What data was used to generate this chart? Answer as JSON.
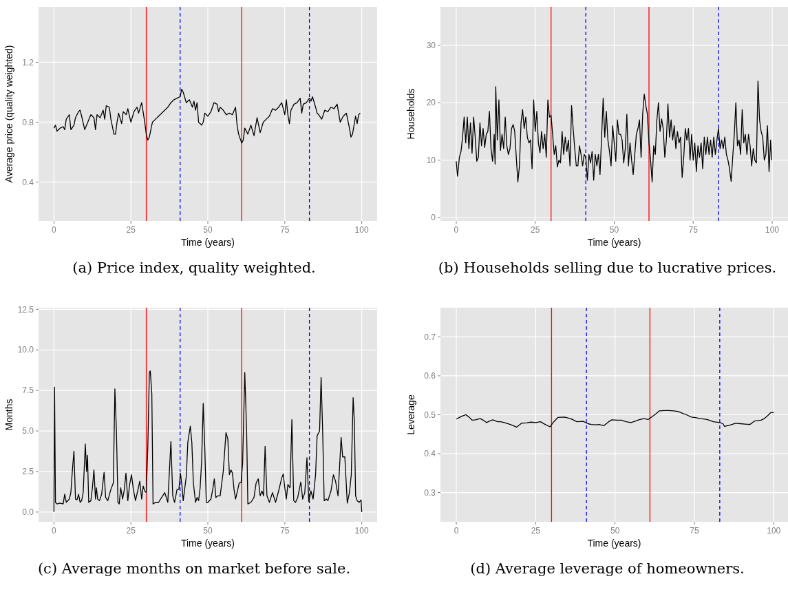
{
  "chart_data": [
    {
      "type": "line",
      "title": "(a) Price index, quality weighted.",
      "xlabel": "Time (years)",
      "ylabel": "Average price (quality weighted)",
      "xlim": [
        -5,
        105
      ],
      "ylim": [
        0.14,
        1.57
      ],
      "xticks": [
        0,
        25,
        50,
        75,
        100
      ],
      "yticks": [
        {
          "value": 0.4,
          "label": "0.4"
        },
        {
          "value": 0.8,
          "label": "0.8"
        },
        {
          "value": 1.2,
          "label": "1.2"
        }
      ],
      "grid": true,
      "x": [
        0,
        0.5,
        1,
        2,
        3,
        3.5,
        4,
        5,
        5.5,
        6.5,
        7,
        8,
        8.5,
        9,
        10,
        11,
        12,
        13,
        13.5,
        14,
        15,
        16,
        16.5,
        17,
        18,
        18.5,
        19.5,
        20,
        20.5,
        21,
        22,
        22.5,
        23.5,
        24,
        25,
        26,
        27,
        27.5,
        28.5,
        29.5,
        30,
        30.5,
        31,
        32,
        33,
        34,
        35,
        36,
        37,
        38,
        39,
        40,
        41,
        41.5,
        42,
        43,
        44,
        45,
        45.5,
        46,
        46.5,
        47,
        48,
        48.5,
        49,
        50,
        51,
        52,
        53,
        53.5,
        54,
        55,
        56,
        57,
        58,
        59,
        59.5,
        60,
        61,
        61.5,
        62,
        63,
        64,
        65,
        66,
        66.5,
        67,
        68,
        69,
        70,
        71,
        72,
        73,
        74,
        75,
        75.5,
        76,
        76.5,
        77,
        78,
        79,
        80,
        80.5,
        81,
        82,
        83,
        83.5,
        84,
        85,
        85.5,
        86,
        87,
        88,
        89,
        90,
        91,
        92,
        92.5,
        93,
        94,
        95,
        96,
        96.5,
        97,
        98,
        98.5,
        99,
        99.5
      ],
      "series": [
        {
          "color": "#000000",
          "values": [
            0.76,
            0.78,
            0.74,
            0.76,
            0.77,
            0.75,
            0.82,
            0.85,
            0.75,
            0.78,
            0.83,
            0.87,
            0.88,
            0.84,
            0.75,
            0.8,
            0.85,
            0.83,
            0.75,
            0.85,
            0.83,
            0.88,
            0.82,
            0.91,
            0.9,
            0.82,
            0.72,
            0.72,
            0.8,
            0.86,
            0.79,
            0.87,
            0.85,
            0.89,
            0.8,
            0.87,
            0.9,
            0.86,
            0.93,
            0.8,
            0.72,
            0.68,
            0.7,
            0.8,
            0.82,
            0.84,
            0.86,
            0.88,
            0.9,
            0.93,
            0.95,
            0.96,
            0.97,
            1.02,
            1.0,
            0.93,
            0.95,
            0.9,
            0.94,
            0.88,
            0.93,
            0.8,
            0.78,
            0.8,
            0.86,
            0.84,
            0.87,
            0.93,
            0.92,
            0.87,
            0.9,
            0.88,
            0.85,
            0.86,
            0.85,
            0.9,
            0.78,
            0.72,
            0.66,
            0.68,
            0.76,
            0.72,
            0.78,
            0.71,
            0.83,
            0.78,
            0.73,
            0.8,
            0.82,
            0.84,
            0.89,
            0.88,
            0.9,
            0.93,
            0.85,
            0.95,
            0.85,
            0.79,
            0.88,
            0.92,
            0.93,
            0.96,
            0.86,
            0.92,
            0.93,
            0.96,
            0.94,
            0.97,
            0.9,
            0.86,
            0.85,
            0.82,
            0.88,
            0.87,
            0.9,
            0.89,
            0.92,
            0.86,
            0.8,
            0.84,
            0.86,
            0.76,
            0.7,
            0.72,
            0.84,
            0.79,
            0.85,
            0.86
          ]
        }
      ],
      "ref_lines": [
        {
          "axis": "x",
          "value": 30,
          "color": "#ff0000",
          "line_style": "solid"
        },
        {
          "axis": "x",
          "value": 41,
          "color": "#0000ff",
          "line_style": "dashed"
        },
        {
          "axis": "x",
          "value": 61,
          "color": "#ff0000",
          "line_style": "solid"
        },
        {
          "axis": "x",
          "value": 83,
          "color": "#0000ff",
          "line_style": "dashed"
        }
      ]
    },
    {
      "type": "line",
      "title": "(b) Households selling due to lucrative prices.",
      "xlabel": "Time (years)",
      "ylabel": "Households",
      "xlim": [
        -5,
        105
      ],
      "ylim": [
        -0.6,
        36.7
      ],
      "xticks": [
        0,
        25,
        50,
        75,
        100
      ],
      "yticks": [
        0,
        10,
        20,
        30
      ],
      "grid": true,
      "x": [
        0,
        0.4,
        1,
        1.5,
        2,
        2.5,
        3,
        3.5,
        4,
        4.5,
        5,
        5.5,
        6,
        6.5,
        7,
        7.5,
        8,
        8.5,
        9,
        9.5,
        10,
        10.5,
        11,
        11.5,
        12,
        12.3,
        12.5,
        13,
        13.5,
        14,
        14.5,
        15,
        15.5,
        16,
        16.5,
        17,
        17.5,
        18,
        18.5,
        19,
        19.5,
        20,
        20.5,
        21,
        21.5,
        22,
        22.5,
        23,
        23.5,
        24,
        24.5,
        25,
        25.5,
        26,
        26.5,
        27,
        27.5,
        28,
        28.5,
        29,
        29.5,
        30,
        30.5,
        31,
        31.5,
        32,
        32.5,
        33,
        33.5,
        34,
        34.5,
        35,
        35.5,
        36,
        36.5,
        37,
        37.5,
        38,
        38.5,
        39,
        39.5,
        40,
        40.5,
        41,
        41.5,
        42,
        42.5,
        43,
        43.5,
        44,
        44.5,
        45,
        45.5,
        46,
        46.5,
        47,
        47.5,
        48,
        48.5,
        49,
        49.5,
        50,
        50.5,
        51,
        51.5,
        52,
        52.5,
        53,
        53.5,
        54,
        54.5,
        55,
        55.5,
        56,
        56.5,
        57,
        57.5,
        58,
        58.5,
        59,
        59.5,
        60,
        60.5,
        61,
        61.5,
        62,
        62.5,
        63,
        63.5,
        64,
        64.5,
        65,
        65.5,
        66,
        66.5,
        67,
        67.5,
        68,
        68.5,
        69,
        69.5,
        70,
        70.5,
        71,
        71.5,
        72,
        72.5,
        73,
        73.5,
        74,
        74.5,
        75,
        75.5,
        76,
        76.5,
        77,
        77.5,
        78,
        78.5,
        79,
        79.5,
        80,
        80.5,
        81,
        81.5,
        82,
        82.5,
        83,
        83.5,
        84,
        84.5,
        85,
        85.5,
        86,
        86.5,
        87,
        87.5,
        88,
        88.5,
        89,
        89.5,
        90,
        90.5,
        91,
        91.5,
        92,
        92.5,
        93,
        93.5,
        94,
        94.5,
        95,
        95.5,
        96,
        96.5,
        97,
        97.5,
        98,
        98.5,
        99,
        99.5,
        99.8
      ],
      "series": [
        {
          "color": "#000000",
          "values": [
            9.8,
            7.2,
            10.5,
            11.5,
            14,
            17.5,
            13,
            17.5,
            12,
            16.5,
            11.2,
            17.5,
            14,
            9.8,
            10.5,
            16.5,
            12.5,
            15.5,
            12.2,
            14.5,
            15,
            18.5,
            12,
            9.8,
            14.5,
            9.3,
            22.8,
            13.5,
            20.5,
            11.7,
            14.5,
            12,
            17.5,
            12.5,
            11,
            12,
            15.5,
            16.2,
            15,
            10.5,
            6.2,
            9,
            16.5,
            18.8,
            15.5,
            17.5,
            14,
            13,
            13.5,
            8.5,
            20.5,
            15,
            18.5,
            13,
            11.3,
            15,
            12,
            14.5,
            10.5,
            20.5,
            17.5,
            17.8,
            14.5,
            11,
            12.5,
            8.8,
            10,
            9.5,
            15,
            11,
            14,
            11.5,
            13.5,
            9,
            19.5,
            15.5,
            12,
            9,
            9,
            12.5,
            11,
            9,
            11,
            10.5,
            6.5,
            11,
            9.5,
            11.5,
            6.5,
            11,
            9,
            11,
            7.5,
            14,
            20.8,
            14,
            18.5,
            13.5,
            11.5,
            9,
            16,
            13,
            9.8,
            17,
            14.5,
            14.5,
            13.5,
            9.5,
            12,
            18,
            9,
            13,
            10,
            7.5,
            11,
            14.5,
            15.5,
            17,
            10.5,
            18,
            21.5,
            19.5,
            18,
            13,
            10,
            6.2,
            12.5,
            11,
            17,
            20,
            15,
            17.2,
            15.5,
            10.5,
            13.5,
            19.8,
            14,
            17,
            13.5,
            16,
            12,
            15,
            13,
            14,
            7,
            10.5,
            15.5,
            13.5,
            15.5,
            10,
            14.5,
            10,
            13,
            8,
            12.5,
            10.5,
            13,
            8.5,
            14,
            11,
            14,
            11,
            13.5,
            10.5,
            14,
            11,
            13.5,
            15.5,
            12,
            13.5,
            12,
            14,
            11,
            10,
            8.5,
            6.3,
            10.5,
            14.5,
            20,
            12.5,
            13.5,
            11,
            18.8,
            13,
            14.5,
            11,
            14.5,
            12.5,
            9,
            12,
            10,
            9.5,
            23.8,
            17,
            15,
            14,
            10,
            11,
            16,
            8,
            13.5,
            10
          ]
        }
      ],
      "ref_lines": [
        {
          "axis": "x",
          "value": 30,
          "color": "#ff0000",
          "line_style": "solid"
        },
        {
          "axis": "x",
          "value": 41,
          "color": "#0000ff",
          "line_style": "dashed"
        },
        {
          "axis": "x",
          "value": 61,
          "color": "#ff0000",
          "line_style": "solid"
        },
        {
          "axis": "x",
          "value": 83,
          "color": "#0000ff",
          "line_style": "dashed"
        }
      ]
    },
    {
      "type": "line",
      "title": "(c) Average months on market before sale.",
      "xlabel": "Time (years)",
      "ylabel": "Months",
      "xlim": [
        -5,
        105
      ],
      "ylim": [
        -0.6,
        12.6
      ],
      "xticks": [
        0,
        25,
        50,
        75,
        100
      ],
      "yticks": [
        {
          "value": 0,
          "label": "0.0"
        },
        {
          "value": 2.5,
          "label": "2.5"
        },
        {
          "value": 5,
          "label": "5.0"
        },
        {
          "value": 7.5,
          "label": "7.5"
        },
        {
          "value": 10,
          "label": "10.0"
        },
        {
          "value": 12.5,
          "label": "12.5"
        }
      ],
      "grid": true,
      "x": [
        0,
        0.2,
        0.5,
        1,
        2,
        3,
        3.5,
        4,
        5,
        5.5,
        6,
        6.5,
        7,
        7.5,
        8,
        8.5,
        9,
        9.5,
        10.2,
        10.6,
        10.9,
        11.3,
        12,
        12.5,
        13,
        13.5,
        13.8,
        14.2,
        14.8,
        15.5,
        16.3,
        16.8,
        17.5,
        18.5,
        19.3,
        19.8,
        20.3,
        20.8,
        21.2,
        21.7,
        22.3,
        22.8,
        23.4,
        24,
        24.6,
        25.2,
        25.8,
        26.5,
        27.2,
        27.9,
        28.5,
        29,
        29.5,
        30,
        30.5,
        31,
        31.3,
        31.8,
        32.2,
        33,
        34,
        35,
        36,
        37,
        38,
        38.6,
        39.2,
        40,
        40.6,
        41.1,
        41.6,
        42,
        43,
        43.5,
        44.3,
        44.8,
        45.3,
        46,
        46.5,
        47,
        47.5,
        48,
        48.5,
        49,
        49.5,
        50,
        51,
        51.5,
        52.1,
        52.6,
        53.2,
        54,
        55,
        55.9,
        56.5,
        57,
        57.5,
        58,
        58.5,
        59,
        59.5,
        60.2,
        60.8,
        61.3,
        62,
        62.6,
        63,
        64,
        65,
        65.7,
        66.4,
        67,
        67.6,
        68.1,
        68.6,
        69.2,
        70,
        71,
        72,
        73,
        74,
        74.5,
        75,
        75.5,
        76,
        76.7,
        77.3,
        77.9,
        78.5,
        79.2,
        80.2,
        80.8,
        81.5,
        82.2,
        82.8,
        83.5,
        84.2,
        85,
        85.5,
        86.3,
        86.8,
        87.3,
        87.8,
        88.5,
        89,
        90,
        90.8,
        91.5,
        92.3,
        93.3,
        93.8,
        94.5,
        95.3,
        96,
        96.6,
        97.2,
        97.6,
        98,
        98.5,
        99.2,
        99.8,
        100
      ],
      "series": [
        {
          "color": "#000000",
          "values": [
            0,
            7.7,
            0.6,
            0.5,
            0.55,
            0.5,
            1.1,
            0.6,
            0.8,
            1.2,
            2.6,
            3.75,
            0.8,
            0.75,
            1.1,
            0.6,
            0.7,
            1.2,
            4.2,
            2.5,
            3.5,
            0.6,
            0.7,
            1.5,
            2.6,
            0.8,
            1.5,
            0.8,
            0.7,
            1.1,
            2.45,
            0.9,
            0.7,
            1.4,
            1.8,
            7.6,
            5,
            0.6,
            0.5,
            1.5,
            0.8,
            1.3,
            2.4,
            0.7,
            1.7,
            2.3,
            1.4,
            0.7,
            1.3,
            1.9,
            0.8,
            1.6,
            1.3,
            1.2,
            4,
            8.6,
            8.7,
            7.3,
            0.5,
            0.6,
            0.6,
            0.9,
            1.2,
            0.6,
            4.35,
            1,
            0.6,
            1.4,
            1.4,
            2.4,
            1.6,
            0.7,
            2.2,
            4.3,
            5.3,
            4.3,
            1.8,
            0.6,
            0.9,
            0.7,
            1.5,
            3.2,
            6.7,
            4,
            0.6,
            0.6,
            0.8,
            1.3,
            2.05,
            0.9,
            1,
            1,
            2.5,
            4.9,
            4.5,
            2.3,
            2.6,
            2.4,
            1.4,
            0.8,
            1.2,
            1.8,
            1.8,
            3,
            8.6,
            5,
            0.5,
            0.6,
            0.9,
            1.8,
            2.05,
            1,
            1.3,
            1,
            4.05,
            1,
            0.6,
            1.2,
            0.6,
            1.3,
            2.1,
            2.35,
            1.5,
            0.8,
            1.7,
            1.5,
            5.7,
            0.7,
            0.6,
            0.9,
            1.85,
            0.8,
            1.2,
            3.35,
            0.65,
            1.3,
            0.8,
            2.3,
            4.7,
            5,
            8.3,
            5,
            0.7,
            0.8,
            0.7,
            1.3,
            2.3,
            1.9,
            1,
            4.6,
            3.4,
            3.4,
            0.55,
            1.2,
            2.3,
            7.05,
            5.6,
            1,
            0.7,
            0.6,
            0.75,
            0
          ]
        }
      ],
      "ref_lines": [
        {
          "axis": "x",
          "value": 30,
          "color": "#ff0000",
          "line_style": "solid"
        },
        {
          "axis": "x",
          "value": 41,
          "color": "#0000ff",
          "line_style": "dashed"
        },
        {
          "axis": "x",
          "value": 61,
          "color": "#ff0000",
          "line_style": "solid"
        },
        {
          "axis": "x",
          "value": 83,
          "color": "#0000ff",
          "line_style": "dashed"
        }
      ]
    },
    {
      "type": "line",
      "title": "(d) Average leverage of homeowners.",
      "xlabel": "Time (years)",
      "ylabel": "Leverage",
      "xlim": [
        -5,
        104.5
      ],
      "ylim": [
        0.225,
        0.775
      ],
      "xticks": [
        0,
        25,
        50,
        75,
        100
      ],
      "yticks": [
        0.3,
        0.4,
        0.5,
        0.6,
        0.7
      ],
      "grid": true,
      "x": [
        0,
        1,
        2,
        3,
        4,
        5,
        6,
        7.5,
        8.5,
        9.5,
        10.5,
        11.5,
        13,
        14,
        15.5,
        17,
        18,
        19,
        20.5,
        22,
        23.5,
        25,
        26.5,
        28,
        29.5,
        30.5,
        32,
        34,
        36,
        38,
        40,
        41.5,
        42.5,
        44,
        45,
        46.5,
        48,
        49,
        50.5,
        52,
        53.5,
        55,
        56.5,
        57.5,
        59,
        60.5,
        62,
        63,
        64,
        65.5,
        67,
        68.5,
        70,
        71.5,
        72.5,
        74,
        75,
        77,
        79,
        81,
        83,
        84,
        84.5,
        86,
        88,
        89.5,
        91,
        92.5,
        94,
        96,
        97,
        98,
        99,
        100
      ],
      "series": [
        {
          "color": "#000000",
          "values": [
            0.489,
            0.493,
            0.497,
            0.5,
            0.494,
            0.486,
            0.487,
            0.49,
            0.486,
            0.48,
            0.484,
            0.487,
            0.482,
            0.482,
            0.479,
            0.475,
            0.472,
            0.468,
            0.478,
            0.479,
            0.481,
            0.48,
            0.482,
            0.475,
            0.469,
            0.48,
            0.493,
            0.494,
            0.49,
            0.482,
            0.483,
            0.477,
            0.475,
            0.474,
            0.475,
            0.472,
            0.482,
            0.487,
            0.486,
            0.486,
            0.482,
            0.48,
            0.484,
            0.487,
            0.49,
            0.488,
            0.497,
            0.503,
            0.51,
            0.511,
            0.511,
            0.51,
            0.508,
            0.503,
            0.5,
            0.494,
            0.493,
            0.49,
            0.488,
            0.482,
            0.48,
            0.477,
            0.47,
            0.473,
            0.478,
            0.477,
            0.476,
            0.475,
            0.484,
            0.486,
            0.49,
            0.497,
            0.505,
            0.506
          ]
        }
      ],
      "ref_lines": [
        {
          "axis": "x",
          "value": 30,
          "color": "#ff0000",
          "line_style": "solid"
        },
        {
          "axis": "x",
          "value": 41,
          "color": "#0000ff",
          "line_style": "dashed"
        },
        {
          "axis": "x",
          "value": 61,
          "color": "#ff0000",
          "line_style": "solid"
        },
        {
          "axis": "x",
          "value": 83,
          "color": "#0000ff",
          "line_style": "dashed"
        }
      ]
    }
  ]
}
